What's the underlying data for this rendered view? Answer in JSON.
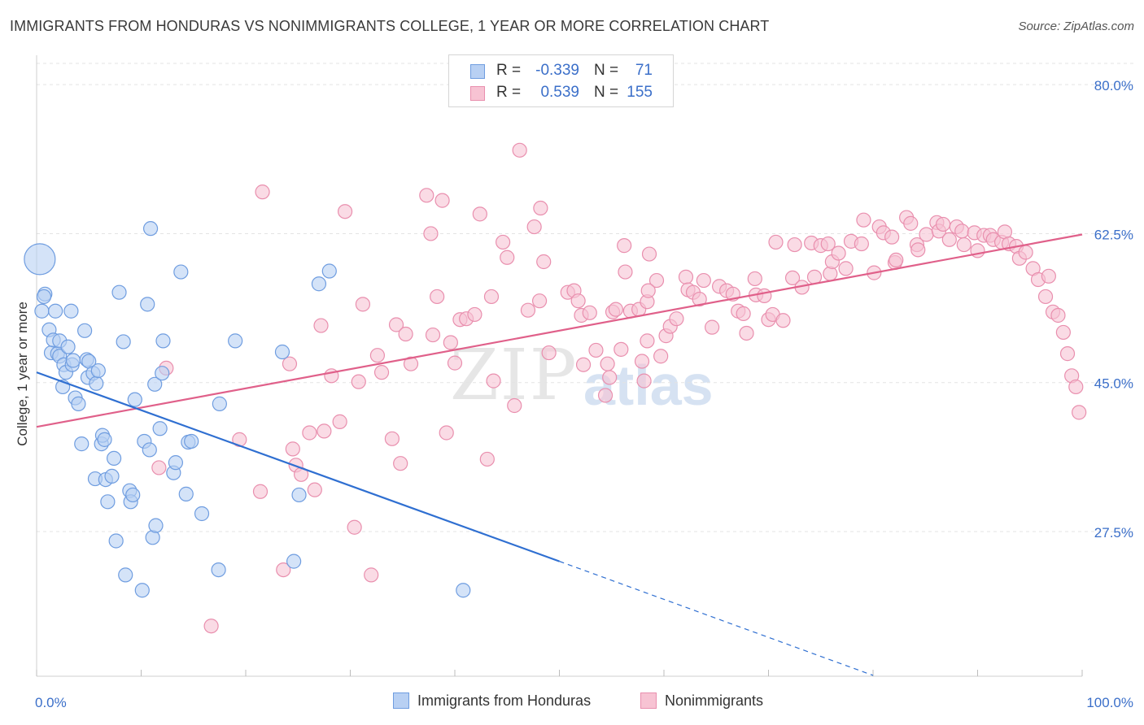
{
  "header": {
    "title": "IMMIGRANTS FROM HONDURAS VS NONIMMIGRANTS COLLEGE, 1 YEAR OR MORE CORRELATION CHART",
    "source": "Source: ZipAtlas.com"
  },
  "watermark": {
    "zip": "ZIP",
    "atlas": "atlas"
  },
  "legend": {
    "rows": [
      {
        "r_label": "R =",
        "r_value": "-0.339",
        "n_label": "N =",
        "n_value": "71"
      },
      {
        "r_label": "R =",
        "r_value": "0.539",
        "n_label": "N =",
        "n_value": "155"
      }
    ]
  },
  "bottom_legend": {
    "series1": "Immigrants from Honduras",
    "series2": "Nonimmigrants"
  },
  "colors": {
    "blue_fill": "#b8d0f3",
    "blue_stroke": "#6f9de0",
    "blue_line": "#2f6fd1",
    "pink_fill": "#f7c3d3",
    "pink_stroke": "#e98fae",
    "pink_line": "#e0608a",
    "tick_label": "#3b6fc9",
    "grid": "#e3e3e3"
  },
  "chart_data": {
    "type": "scatter",
    "title": "IMMIGRANTS FROM HONDURAS VS NONIMMIGRANTS COLLEGE, 1 YEAR OR MORE CORRELATION CHART",
    "xlabel": "",
    "ylabel": "College, 1 year or more",
    "xlim": [
      0,
      100
    ],
    "ylim": [
      10.5,
      82.5
    ],
    "x_tick_labels": [
      "0.0%",
      "100.0%"
    ],
    "y_ticks": [
      27.5,
      45.0,
      62.5,
      80.0
    ],
    "y_tick_labels": [
      "27.5%",
      "45.0%",
      "62.5%",
      "80.0%"
    ],
    "grid": true,
    "legend_placement": "top-center",
    "series": [
      {
        "name": "Immigrants from Honduras",
        "r": -0.339,
        "n": 71,
        "trend": {
          "x0": 0,
          "y0": 46.2,
          "x1": 50,
          "y1": 24.0,
          "dashed_to_x": 80,
          "dashed_to_y": 10.6
        },
        "points": [
          [
            0.3,
            59.5
          ],
          [
            0.5,
            53.4
          ],
          [
            0.8,
            55.4
          ],
          [
            0.7,
            55.1
          ],
          [
            1.2,
            51.2
          ],
          [
            1.4,
            48.5
          ],
          [
            1.6,
            50.0
          ],
          [
            1.8,
            53.4
          ],
          [
            2.0,
            48.4
          ],
          [
            2.2,
            48.1
          ],
          [
            2.2,
            49.9
          ],
          [
            2.5,
            44.5
          ],
          [
            2.6,
            47.1
          ],
          [
            2.8,
            46.2
          ],
          [
            3.0,
            49.2
          ],
          [
            3.3,
            53.4
          ],
          [
            3.4,
            47.1
          ],
          [
            3.5,
            47.6
          ],
          [
            3.7,
            43.2
          ],
          [
            4.0,
            42.5
          ],
          [
            4.3,
            37.8
          ],
          [
            4.6,
            51.1
          ],
          [
            4.8,
            47.7
          ],
          [
            4.9,
            45.6
          ],
          [
            5.0,
            47.5
          ],
          [
            5.4,
            46.1
          ],
          [
            5.6,
            33.7
          ],
          [
            5.7,
            44.9
          ],
          [
            5.9,
            46.4
          ],
          [
            6.2,
            37.8
          ],
          [
            6.3,
            38.8
          ],
          [
            6.5,
            38.3
          ],
          [
            6.6,
            33.6
          ],
          [
            6.8,
            31.0
          ],
          [
            7.2,
            34.0
          ],
          [
            7.4,
            36.1
          ],
          [
            7.6,
            26.4
          ],
          [
            7.9,
            55.6
          ],
          [
            8.3,
            49.8
          ],
          [
            8.5,
            22.4
          ],
          [
            8.9,
            32.3
          ],
          [
            9.0,
            31.0
          ],
          [
            9.2,
            31.8
          ],
          [
            9.4,
            43.0
          ],
          [
            10.1,
            20.6
          ],
          [
            10.3,
            38.1
          ],
          [
            10.6,
            54.2
          ],
          [
            10.8,
            37.1
          ],
          [
            10.9,
            63.1
          ],
          [
            11.1,
            26.8
          ],
          [
            11.3,
            44.8
          ],
          [
            11.4,
            28.2
          ],
          [
            11.8,
            39.6
          ],
          [
            12.0,
            46.1
          ],
          [
            12.1,
            49.9
          ],
          [
            13.1,
            34.4
          ],
          [
            13.3,
            35.6
          ],
          [
            13.8,
            58.0
          ],
          [
            14.3,
            31.9
          ],
          [
            14.5,
            38.0
          ],
          [
            14.8,
            38.1
          ],
          [
            15.8,
            29.6
          ],
          [
            17.4,
            23.0
          ],
          [
            17.5,
            42.5
          ],
          [
            19.0,
            49.9
          ],
          [
            23.5,
            48.6
          ],
          [
            24.6,
            24.0
          ],
          [
            25.1,
            31.8
          ],
          [
            27.0,
            56.6
          ],
          [
            28.0,
            58.1
          ],
          [
            40.8,
            20.6
          ]
        ]
      },
      {
        "name": "Nonimmigrants",
        "r": 0.539,
        "n": 155,
        "trend": {
          "x0": 0,
          "y0": 39.8,
          "x1": 100,
          "y1": 62.4
        },
        "points": [
          [
            11.7,
            35.0
          ],
          [
            12.4,
            46.7
          ],
          [
            16.7,
            16.4
          ],
          [
            19.4,
            38.3
          ],
          [
            21.4,
            32.2
          ],
          [
            21.6,
            67.4
          ],
          [
            23.6,
            23.0
          ],
          [
            24.2,
            47.2
          ],
          [
            24.5,
            37.2
          ],
          [
            24.8,
            35.3
          ],
          [
            25.3,
            34.2
          ],
          [
            26.1,
            39.1
          ],
          [
            26.6,
            32.4
          ],
          [
            27.2,
            51.7
          ],
          [
            27.5,
            39.3
          ],
          [
            28.2,
            45.8
          ],
          [
            29.0,
            40.4
          ],
          [
            29.5,
            65.1
          ],
          [
            30.4,
            28.0
          ],
          [
            30.8,
            45.1
          ],
          [
            31.2,
            54.2
          ],
          [
            32.0,
            22.4
          ],
          [
            32.6,
            48.2
          ],
          [
            33.0,
            46.2
          ],
          [
            34.0,
            38.4
          ],
          [
            34.4,
            51.8
          ],
          [
            34.8,
            35.5
          ],
          [
            35.3,
            50.7
          ],
          [
            35.8,
            47.2
          ],
          [
            37.3,
            67.0
          ],
          [
            37.7,
            62.5
          ],
          [
            37.9,
            50.6
          ],
          [
            38.3,
            55.1
          ],
          [
            38.8,
            66.4
          ],
          [
            39.2,
            39.1
          ],
          [
            39.6,
            49.7
          ],
          [
            40.0,
            47.3
          ],
          [
            40.5,
            52.4
          ],
          [
            41.1,
            52.5
          ],
          [
            41.9,
            53.0
          ],
          [
            42.4,
            64.8
          ],
          [
            43.1,
            36.0
          ],
          [
            43.5,
            55.1
          ],
          [
            43.7,
            45.2
          ],
          [
            44.6,
            61.5
          ],
          [
            45.0,
            59.7
          ],
          [
            45.7,
            42.3
          ],
          [
            47.0,
            53.5
          ],
          [
            47.6,
            63.3
          ],
          [
            48.1,
            54.6
          ],
          [
            48.2,
            65.5
          ],
          [
            48.5,
            59.2
          ],
          [
            49.0,
            48.5
          ],
          [
            50.8,
            55.6
          ],
          [
            51.4,
            55.8
          ],
          [
            51.8,
            54.6
          ],
          [
            52.1,
            52.9
          ],
          [
            52.9,
            53.2
          ],
          [
            53.5,
            48.8
          ],
          [
            54.4,
            43.5
          ],
          [
            54.8,
            45.6
          ],
          [
            54.6,
            47.2
          ],
          [
            55.1,
            53.3
          ],
          [
            55.9,
            48.9
          ],
          [
            56.3,
            58.0
          ],
          [
            56.8,
            53.4
          ],
          [
            57.6,
            53.6
          ],
          [
            57.9,
            47.5
          ],
          [
            58.1,
            45.2
          ],
          [
            58.4,
            54.5
          ],
          [
            58.6,
            60.1
          ],
          [
            59.3,
            57.0
          ],
          [
            59.7,
            48.1
          ],
          [
            60.2,
            50.5
          ],
          [
            60.6,
            51.6
          ],
          [
            61.2,
            52.5
          ],
          [
            62.1,
            57.4
          ],
          [
            62.3,
            55.9
          ],
          [
            62.8,
            55.6
          ],
          [
            63.4,
            54.8
          ],
          [
            63.8,
            57.0
          ],
          [
            64.6,
            51.5
          ],
          [
            65.3,
            56.3
          ],
          [
            66.0,
            55.8
          ],
          [
            66.6,
            55.4
          ],
          [
            67.1,
            53.4
          ],
          [
            67.6,
            53.1
          ],
          [
            67.9,
            50.8
          ],
          [
            68.8,
            55.3
          ],
          [
            68.7,
            57.2
          ],
          [
            69.6,
            55.2
          ],
          [
            70.0,
            52.4
          ],
          [
            70.4,
            53.0
          ],
          [
            70.7,
            61.5
          ],
          [
            71.4,
            52.3
          ],
          [
            72.3,
            57.3
          ],
          [
            72.5,
            61.2
          ],
          [
            73.2,
            56.2
          ],
          [
            74.1,
            61.4
          ],
          [
            74.4,
            57.4
          ],
          [
            75.0,
            61.1
          ],
          [
            75.7,
            61.3
          ],
          [
            75.9,
            57.8
          ],
          [
            76.1,
            59.2
          ],
          [
            76.7,
            60.2
          ],
          [
            77.4,
            58.4
          ],
          [
            77.9,
            61.6
          ],
          [
            78.9,
            61.3
          ],
          [
            79.1,
            64.1
          ],
          [
            80.1,
            57.9
          ],
          [
            80.6,
            63.3
          ],
          [
            81.0,
            62.6
          ],
          [
            81.8,
            62.1
          ],
          [
            82.1,
            59.1
          ],
          [
            82.2,
            59.4
          ],
          [
            83.2,
            64.4
          ],
          [
            83.6,
            63.7
          ],
          [
            84.2,
            61.2
          ],
          [
            84.3,
            60.6
          ],
          [
            85.1,
            62.4
          ],
          [
            86.1,
            63.8
          ],
          [
            86.3,
            62.8
          ],
          [
            86.7,
            63.6
          ],
          [
            87.3,
            61.8
          ],
          [
            88.0,
            63.3
          ],
          [
            88.5,
            62.8
          ],
          [
            88.7,
            61.2
          ],
          [
            89.7,
            62.6
          ],
          [
            90.0,
            60.5
          ],
          [
            90.6,
            62.3
          ],
          [
            91.2,
            62.3
          ],
          [
            91.5,
            61.8
          ],
          [
            92.3,
            61.5
          ],
          [
            92.6,
            62.7
          ],
          [
            93.0,
            61.3
          ],
          [
            93.7,
            61.0
          ],
          [
            94.0,
            59.6
          ],
          [
            94.6,
            60.3
          ],
          [
            95.3,
            58.4
          ],
          [
            95.8,
            57.1
          ],
          [
            96.5,
            55.1
          ],
          [
            96.8,
            57.5
          ],
          [
            97.2,
            53.3
          ],
          [
            97.7,
            52.9
          ],
          [
            98.2,
            50.9
          ],
          [
            98.6,
            48.4
          ],
          [
            99.0,
            45.8
          ],
          [
            99.4,
            44.5
          ],
          [
            99.7,
            41.5
          ],
          [
            46.2,
            72.3
          ],
          [
            55.4,
            53.6
          ],
          [
            56.2,
            61.1
          ],
          [
            58.4,
            49.9
          ],
          [
            52.3,
            47.1
          ],
          [
            58.5,
            55.8
          ]
        ]
      }
    ]
  }
}
